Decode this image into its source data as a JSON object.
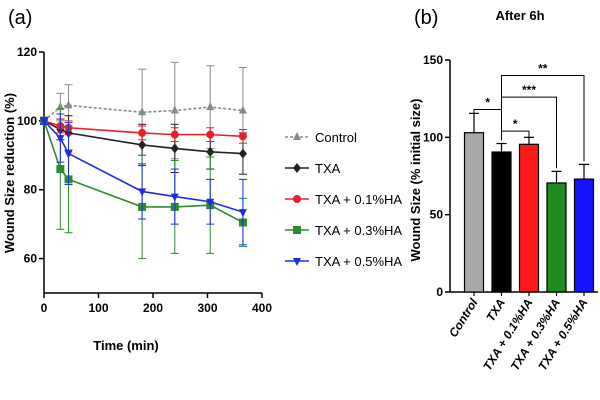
{
  "chart_data": [
    {
      "type": "line",
      "panel_label": "(a)",
      "title": "",
      "xlabel": "Time (min)",
      "ylabel": "Wound Size reduction (%)",
      "xlim": [
        0,
        400
      ],
      "ylim": [
        50,
        120
      ],
      "xticks": [
        0,
        100,
        200,
        300,
        400
      ],
      "yticks": [
        60,
        80,
        100,
        120
      ],
      "x": [
        0,
        30,
        45,
        180,
        240,
        305,
        365
      ],
      "legend_position": "right",
      "series": [
        {
          "name": "Control",
          "color": "#888888",
          "marker": "triangle-up",
          "dashed": true,
          "values": [
            100,
            104,
            104.5,
            102.5,
            103,
            104,
            103
          ],
          "errors": [
            1,
            4,
            6,
            12.5,
            14,
            12,
            12.5
          ]
        },
        {
          "name": "TXA",
          "color": "#222222",
          "marker": "diamond",
          "dashed": false,
          "values": [
            100,
            97.5,
            96.5,
            93,
            92,
            91,
            90.5
          ],
          "errors": [
            1,
            3,
            5,
            6,
            7,
            5,
            6
          ]
        },
        {
          "name": "TXA + 0.1%HA",
          "color": "#e8202a",
          "marker": "circle",
          "dashed": false,
          "values": [
            100,
            98.5,
            98,
            96.5,
            96,
            96,
            95.5
          ],
          "errors": [
            1,
            2,
            2,
            2,
            2,
            2,
            2
          ]
        },
        {
          "name": "TXA + 0.3%HA",
          "color": "#2e8b2e",
          "marker": "square",
          "dashed": false,
          "values": [
            100,
            86,
            83,
            75,
            75,
            75.5,
            70.5
          ],
          "errors": [
            1,
            17.5,
            15.5,
            15,
            13.5,
            14,
            7
          ]
        },
        {
          "name": "TXA + 0.5%HA",
          "color": "#1c2ee0",
          "marker": "triangle-down",
          "dashed": false,
          "values": [
            100,
            95,
            90.5,
            79.5,
            78,
            76.5,
            73.5
          ],
          "errors": [
            1,
            7,
            9,
            8,
            8,
            6.5,
            9.5
          ]
        }
      ]
    },
    {
      "type": "bar",
      "panel_label": "(b)",
      "title": "After 6h",
      "xlabel": "",
      "ylabel": "Wound Size (% initial size)",
      "ylim": [
        0,
        150
      ],
      "yticks": [
        0,
        50,
        100,
        150
      ],
      "categories": [
        "Control",
        "TXA",
        "TXA + 0.1%HA",
        "TXA + 0.3%HA",
        "TXA + 0.5%HA"
      ],
      "values": [
        103,
        90.5,
        95.5,
        70.5,
        73
      ],
      "errors": [
        12.5,
        5.5,
        4.5,
        7.5,
        9.5
      ],
      "colors": [
        "#a8a8a8",
        "#000000",
        "#ff1a1a",
        "#1e8c1e",
        "#1414ff"
      ],
      "significance": [
        {
          "from": 0,
          "to": 1,
          "label": "*"
        },
        {
          "from": 1,
          "to": 2,
          "label": "*"
        },
        {
          "from": 1,
          "to": 3,
          "label": "***"
        },
        {
          "from": 1,
          "to": 4,
          "label": "**"
        }
      ]
    }
  ]
}
